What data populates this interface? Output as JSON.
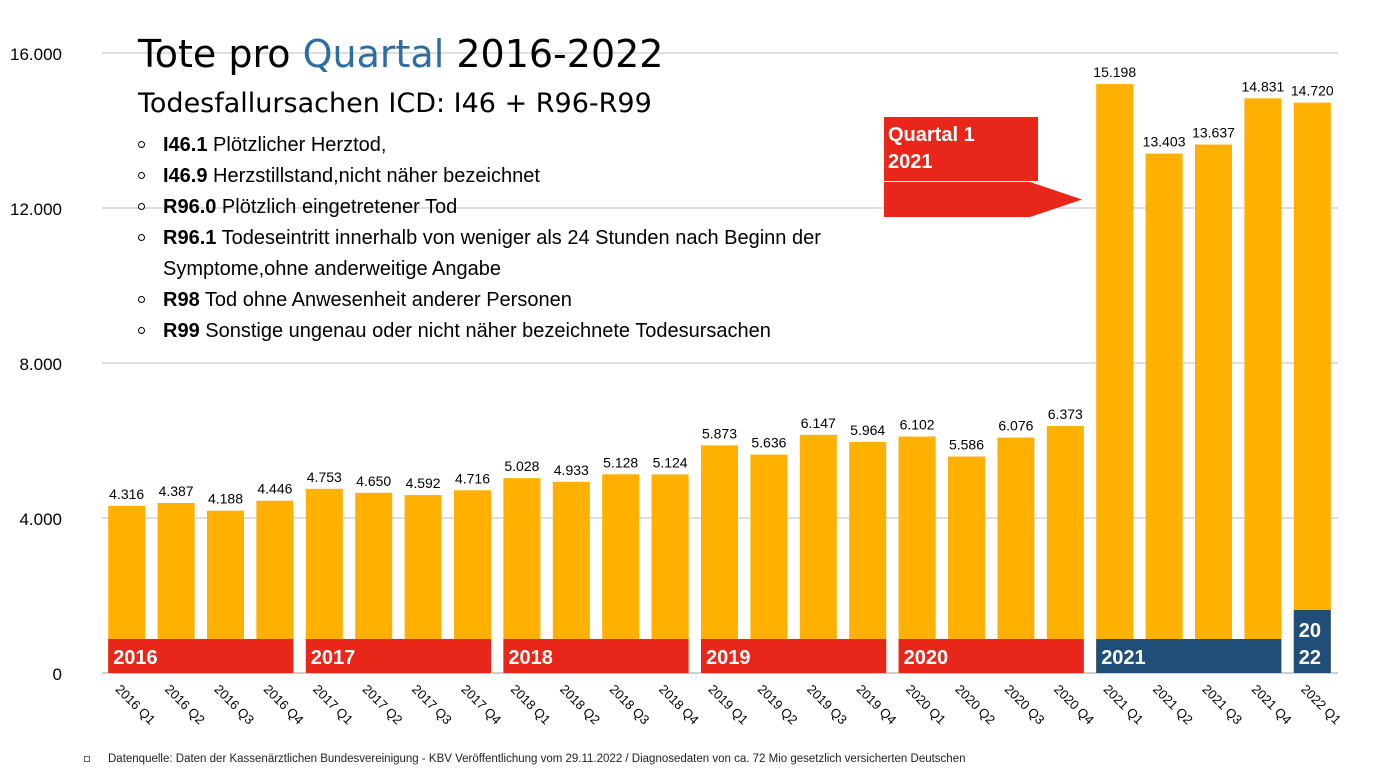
{
  "title": {
    "part1": "Tote pro ",
    "part2": "Quartal",
    "part3": " 2016-2022"
  },
  "subtitle": "Todesfallursachen ICD: I46 + R96-R99",
  "bullets": [
    {
      "code": "I46.1",
      "text": " Plötzlicher Herztod,"
    },
    {
      "code": "I46.9",
      "text": " Herzstillstand,nicht näher bezeichnet"
    },
    {
      "code": "R96.0",
      "text": " Plötzlich eingetretener Tod"
    },
    {
      "code": "R96.1",
      "text": " Todeseintritt innerhalb von weniger als 24 Stunden nach Beginn der Symptome,ohne anderweitige Angabe"
    },
    {
      "code": "R98",
      "text": " Tod ohne Anwesenheit anderer Personen"
    },
    {
      "code": "R99",
      "text": " Sonstige ungenau oder nicht näher bezeichnete Todesursachen"
    }
  ],
  "callout": {
    "line1": "Quartal 1",
    "line2": "2021"
  },
  "source": "Datenquelle: Daten der Kassenärztlichen Bundesvereinigung - KBV Veröffentlichung vom 29.11.2022 / Diagnosedaten von ca. 72 Mio gesetzlich versicherten Deutschen",
  "colors": {
    "bar": "#ffb000",
    "grid": "#bdbdbd",
    "year_red": "#e8261a",
    "year_blue": "#1f4e79",
    "accent": "#2e6da4"
  },
  "chart_data": {
    "type": "bar",
    "categories": [
      "2016 Q1",
      "2016 Q2",
      "2016 Q3",
      "2016 Q4",
      "2017 Q1",
      "2017 Q2",
      "2017 Q3",
      "2017 Q4",
      "2018 Q1",
      "2018 Q2",
      "2018 Q3",
      "2018 Q4",
      "2019 Q1",
      "2019 Q2",
      "2019 Q3",
      "2019 Q4",
      "2020 Q1",
      "2020 Q2",
      "2020 Q3",
      "2020 Q4",
      "2021 Q1",
      "2021 Q2",
      "2021 Q3",
      "2021 Q4",
      "2022 Q1"
    ],
    "values": [
      4316,
      4387,
      4188,
      4446,
      4753,
      4650,
      4592,
      4716,
      5028,
      4933,
      5128,
      5124,
      5873,
      5636,
      6147,
      5964,
      6102,
      5586,
      6076,
      6373,
      15198,
      13403,
      13637,
      14831,
      14720
    ],
    "value_labels": [
      "4.316",
      "4.387",
      "4.188",
      "4.446",
      "4.753",
      "4.650",
      "4.592",
      "4.716",
      "5.028",
      "4.933",
      "5.128",
      "5.124",
      "5.873",
      "5.636",
      "6.147",
      "5.964",
      "6.102",
      "5.586",
      "6.076",
      "6.373",
      "15.198",
      "13.403",
      "13.637",
      "14.831",
      "14.720"
    ],
    "yticks": [
      0,
      4000,
      8000,
      12000,
      16000
    ],
    "ytick_labels": [
      "0",
      "4.000",
      "8.000",
      "12.000",
      "16.000"
    ],
    "ylim": [
      0,
      16000
    ],
    "grid": true,
    "year_groups": [
      {
        "label": "2016",
        "start": 0,
        "end": 3,
        "color": "red"
      },
      {
        "label": "2017",
        "start": 4,
        "end": 7,
        "color": "red"
      },
      {
        "label": "2018",
        "start": 8,
        "end": 11,
        "color": "red"
      },
      {
        "label": "2019",
        "start": 12,
        "end": 15,
        "color": "red"
      },
      {
        "label": "2020",
        "start": 16,
        "end": 19,
        "color": "red"
      },
      {
        "label": "2021",
        "start": 20,
        "end": 23,
        "color": "blue"
      },
      {
        "label": "2022",
        "line1": "20",
        "line2": "22",
        "start": 24,
        "end": 24,
        "color": "blue"
      }
    ]
  }
}
